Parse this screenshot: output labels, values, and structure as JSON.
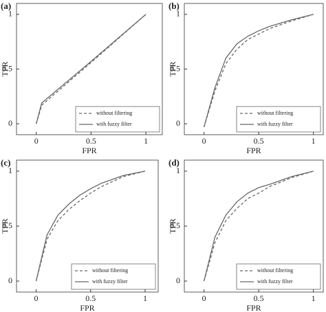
{
  "chart_data": [
    {
      "type": "line",
      "title": "(a)",
      "x_label": "FPR",
      "y_label": "TPR",
      "x": [
        0,
        0.05,
        0.5,
        1
      ],
      "series": [
        {
          "name": "without filtering",
          "color": "#666666",
          "dash": true,
          "values": [
            0,
            0.17,
            0.56,
            1
          ]
        },
        {
          "name": "with fuzzy filter",
          "color": "#666666",
          "dash": false,
          "values": [
            0,
            0.19,
            0.57,
            1
          ]
        }
      ],
      "xlim": [
        -0.18,
        1.15
      ],
      "ylim": [
        -0.1,
        1.1
      ],
      "xticks": [
        0,
        0.5,
        1
      ],
      "yticks": [
        0,
        0.5,
        1
      ],
      "legend": "lower right"
    },
    {
      "type": "line",
      "title": "(b)",
      "x_label": "FPR",
      "y_label": "TPR",
      "x": [
        0,
        0.1,
        0.2,
        0.3,
        0.4,
        0.5,
        0.6,
        0.8,
        1
      ],
      "series": [
        {
          "name": "without filtering",
          "color": "#666666",
          "dash": true,
          "values": [
            -0.03,
            0.3,
            0.55,
            0.68,
            0.77,
            0.82,
            0.87,
            0.94,
            1
          ]
        },
        {
          "name": "with fuzzy filter",
          "color": "#666666",
          "dash": false,
          "values": [
            -0.03,
            0.33,
            0.6,
            0.73,
            0.8,
            0.85,
            0.89,
            0.95,
            1
          ]
        }
      ],
      "xlim": [
        -0.18,
        1.09
      ],
      "ylim": [
        -0.1,
        1.1
      ],
      "xticks": [
        0,
        0.5,
        1
      ],
      "yticks": [
        0,
        0.5,
        1
      ],
      "legend": "lower right"
    },
    {
      "type": "line",
      "title": "(c)",
      "x_label": "FPR",
      "y_label": "TPR",
      "x": [
        0,
        0.1,
        0.2,
        0.3,
        0.4,
        0.5,
        0.6,
        0.8,
        1
      ],
      "series": [
        {
          "name": "without filtering",
          "color": "#666666",
          "dash": true,
          "values": [
            0,
            0.38,
            0.55,
            0.65,
            0.73,
            0.8,
            0.86,
            0.95,
            1
          ]
        },
        {
          "name": "with fuzzy filter",
          "color": "#666666",
          "dash": false,
          "values": [
            0,
            0.42,
            0.6,
            0.7,
            0.78,
            0.84,
            0.89,
            0.96,
            1
          ]
        }
      ],
      "xlim": [
        -0.18,
        1.12
      ],
      "ylim": [
        -0.1,
        1.1
      ],
      "xticks": [
        0,
        0.5,
        1
      ],
      "yticks": [
        0,
        0.5,
        1
      ],
      "legend": "lower right"
    },
    {
      "type": "line",
      "title": "(d)",
      "x_label": "FPR",
      "y_label": "TPR",
      "x": [
        0,
        0.1,
        0.2,
        0.3,
        0.4,
        0.5,
        0.6,
        0.8,
        1
      ],
      "series": [
        {
          "name": "without filtering",
          "color": "#666666",
          "dash": true,
          "values": [
            0,
            0.35,
            0.55,
            0.66,
            0.75,
            0.8,
            0.86,
            0.94,
            1
          ]
        },
        {
          "name": "with fuzzy filter",
          "color": "#666666",
          "dash": false,
          "values": [
            0,
            0.4,
            0.6,
            0.72,
            0.8,
            0.85,
            0.88,
            0.95,
            1
          ]
        }
      ],
      "xlim": [
        -0.18,
        1.09
      ],
      "ylim": [
        -0.1,
        1.1
      ],
      "xticks": [
        0,
        0.5,
        1
      ],
      "yticks": [
        0,
        0.5,
        1
      ],
      "legend": "lower right"
    }
  ]
}
